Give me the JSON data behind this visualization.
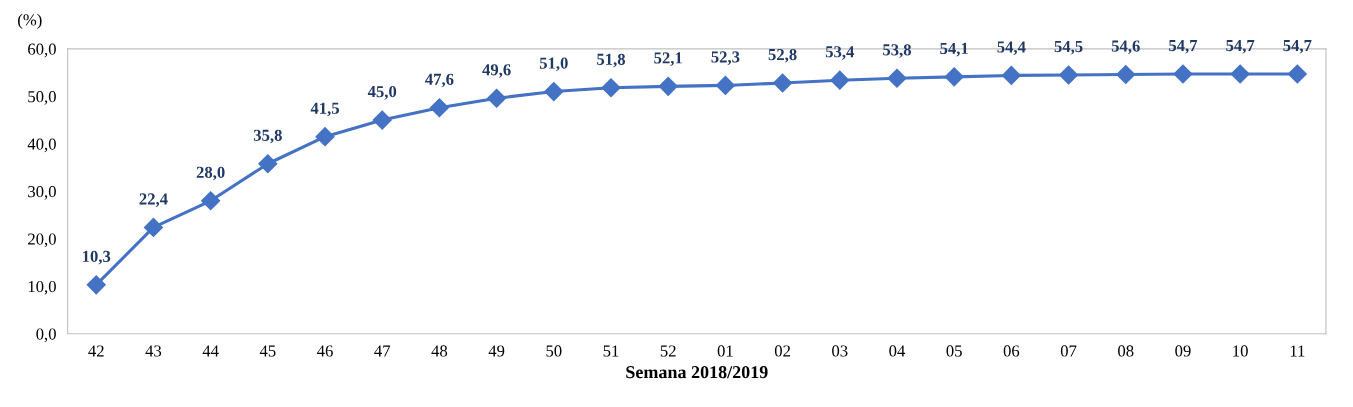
{
  "chart_data": {
    "type": "line",
    "ylabel": "(%)",
    "xlabel": "Semana 2018/2019",
    "categories": [
      "42",
      "43",
      "44",
      "45",
      "46",
      "47",
      "48",
      "49",
      "50",
      "51",
      "52",
      "01",
      "02",
      "03",
      "04",
      "05",
      "06",
      "07",
      "08",
      "09",
      "10",
      "11"
    ],
    "series": [
      {
        "color": "#4472c4",
        "values": [
          10.3,
          22.4,
          28.0,
          35.8,
          41.5,
          45.0,
          47.6,
          49.6,
          51.0,
          51.8,
          52.1,
          52.3,
          52.8,
          53.4,
          53.8,
          54.1,
          54.4,
          54.5,
          54.6,
          54.7,
          54.7,
          54.7
        ],
        "value_labels": [
          "10,3",
          "22,4",
          "28,0",
          "35,8",
          "41,5",
          "45,0",
          "47,6",
          "49,6",
          "51,0",
          "51,8",
          "52,1",
          "52,3",
          "52,8",
          "53,4",
          "53,8",
          "54,1",
          "54,4",
          "54,5",
          "54,6",
          "54,7",
          "54,7",
          "54,7"
        ]
      }
    ],
    "ylim": [
      0,
      60
    ],
    "yticks": [
      {
        "value": 0,
        "label": "0,0"
      },
      {
        "value": 10,
        "label": "10,0"
      },
      {
        "value": 20,
        "label": "20,0"
      },
      {
        "value": 30,
        "label": "30,0"
      },
      {
        "value": 40,
        "label": "40,0"
      },
      {
        "value": 50,
        "label": "50,0"
      },
      {
        "value": 60,
        "label": "60,0"
      }
    ],
    "grid": false,
    "marker": "diamond",
    "line_style": "solid"
  }
}
